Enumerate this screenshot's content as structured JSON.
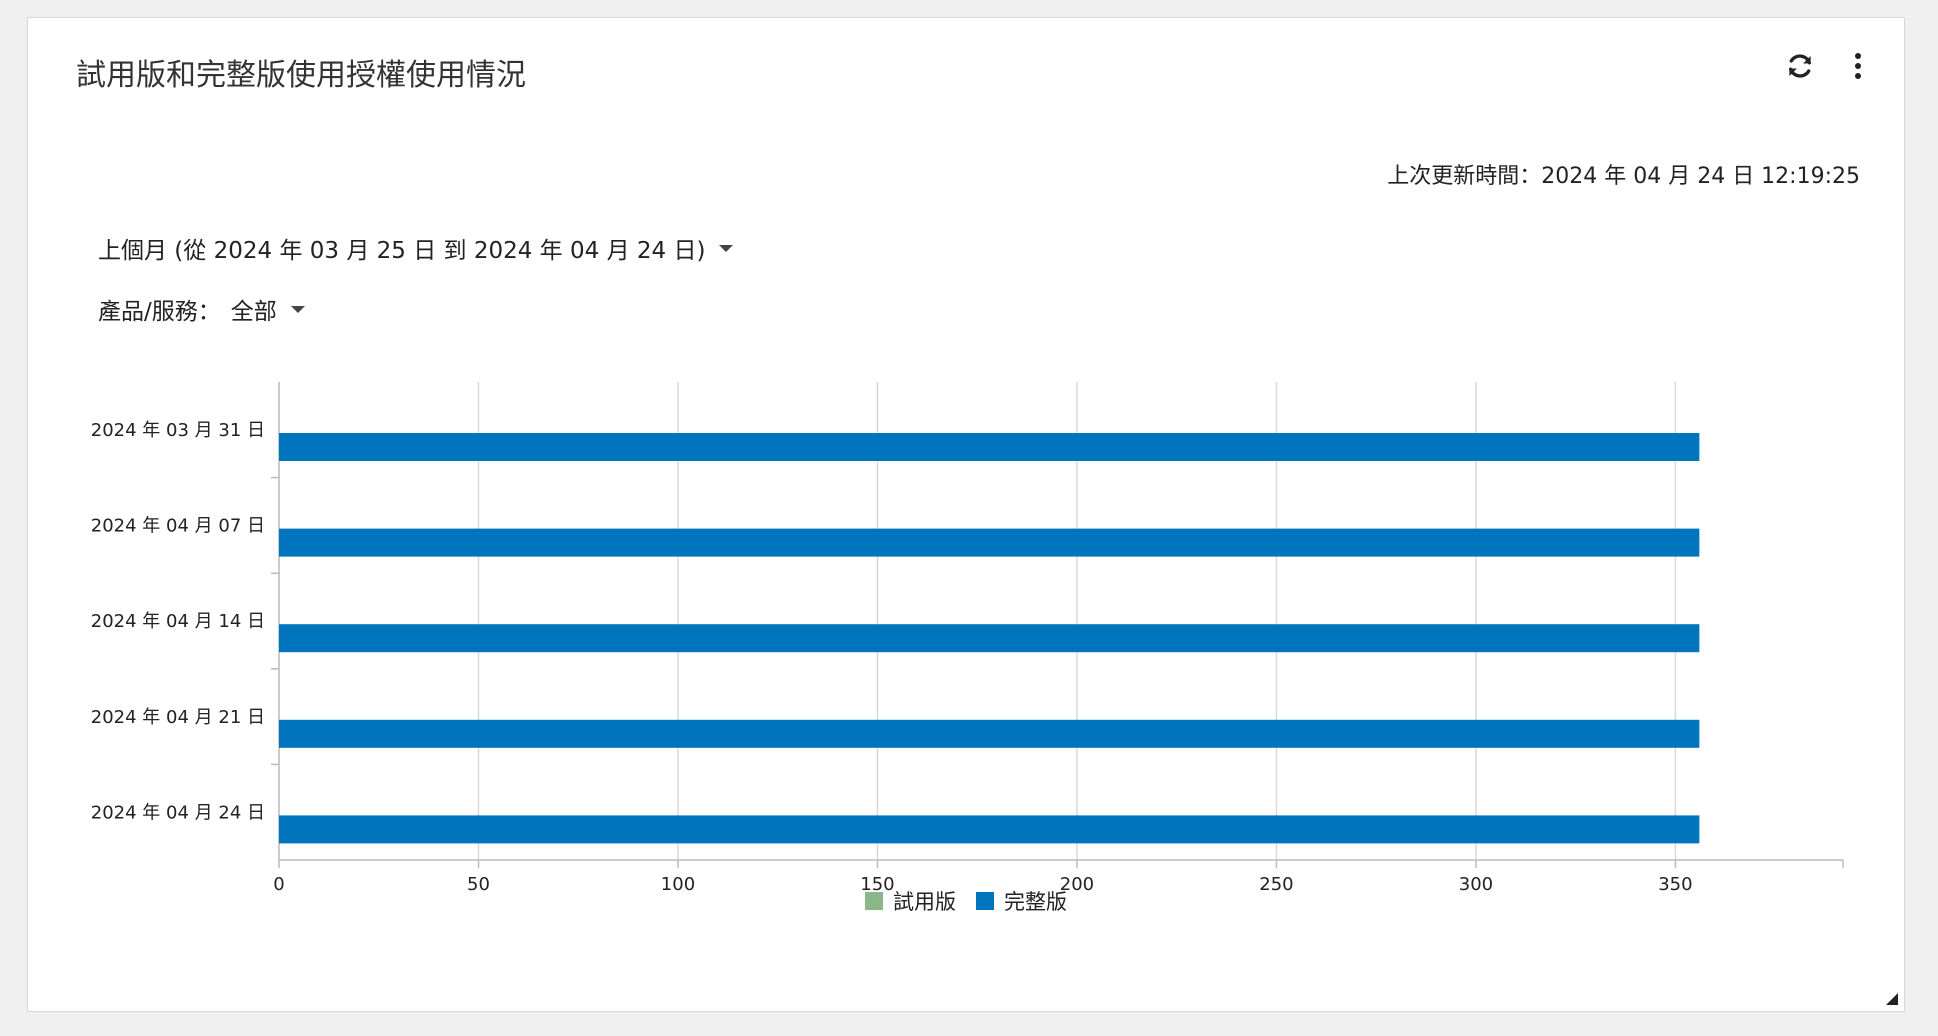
{
  "widget": {
    "title": "試用版和完整版使用授權使用情況",
    "last_updated_label": "上次更新時間：",
    "last_updated_value": "2024 年 04 月 24 日 12:19:25"
  },
  "filters": {
    "range_label": "上個月 (從 2024 年 03 月 25 日 到 2024 年 04 月 24 日)",
    "product_label": "產品/服務：",
    "product_value": "全部"
  },
  "icons": {
    "refresh": "refresh-icon",
    "more": "more-vertical-icon"
  },
  "colors": {
    "trial": "#8bb88a",
    "full": "#0075be",
    "grid": "#d9d9d9",
    "axis": "#bbbbbb"
  },
  "chart_data": {
    "type": "bar",
    "orientation": "horizontal",
    "categories": [
      "2024 年 03 月 31 日",
      "2024 年 04 月 07 日",
      "2024 年 04 月 14 日",
      "2024 年 04 月 21 日",
      "2024 年 04 月 24 日"
    ],
    "series": [
      {
        "name": "試用版",
        "values": [
          0,
          0,
          0,
          0,
          0
        ]
      },
      {
        "name": "完整版",
        "values": [
          356,
          356,
          356,
          356,
          356
        ]
      }
    ],
    "xlim": [
      0,
      392
    ],
    "xticks": [
      0,
      50,
      100,
      150,
      200,
      250,
      300,
      350
    ],
    "grid": true,
    "legend": "bottom-center"
  }
}
